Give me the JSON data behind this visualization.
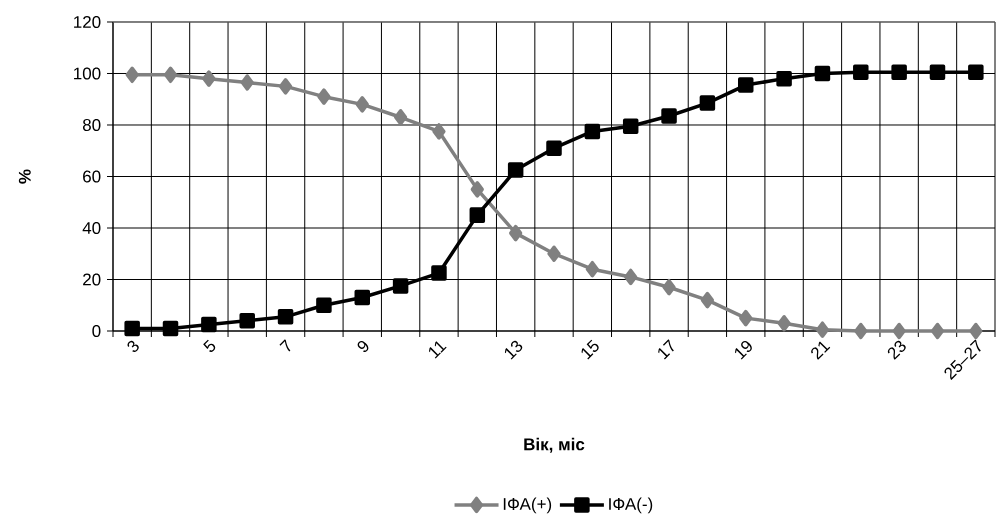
{
  "chart_data": {
    "type": "line",
    "xlabel": "Вік, міс",
    "ylabel": "%",
    "categories": [
      "3",
      null,
      "5",
      null,
      "7",
      null,
      "9",
      null,
      "11",
      null,
      "13",
      null,
      "15",
      null,
      "17",
      null,
      "19",
      null,
      "21",
      null,
      "23",
      null,
      "25–27"
    ],
    "series": [
      {
        "name": "ІФА(+)",
        "color": "#808080",
        "marker": "diamond",
        "values": [
          99.5,
          99.5,
          98,
          96.5,
          95,
          91,
          88,
          83,
          77.5,
          55,
          38,
          30,
          24,
          21,
          17,
          12,
          5,
          3,
          0.5,
          0,
          0,
          0,
          0
        ]
      },
      {
        "name": "ІФА(-)",
        "color": "#000000",
        "marker": "square",
        "values": [
          1,
          1,
          2.5,
          4,
          5.5,
          10,
          13,
          17.5,
          22.5,
          45,
          62.5,
          71,
          77.5,
          79.5,
          83.5,
          88.5,
          95.5,
          98,
          100,
          100.5,
          100.5,
          100.5,
          100.5
        ]
      }
    ],
    "ylim": [
      0,
      120
    ],
    "yticks": [
      0,
      20,
      40,
      60,
      80,
      100,
      120
    ],
    "grid": true,
    "legend": "bottom"
  }
}
